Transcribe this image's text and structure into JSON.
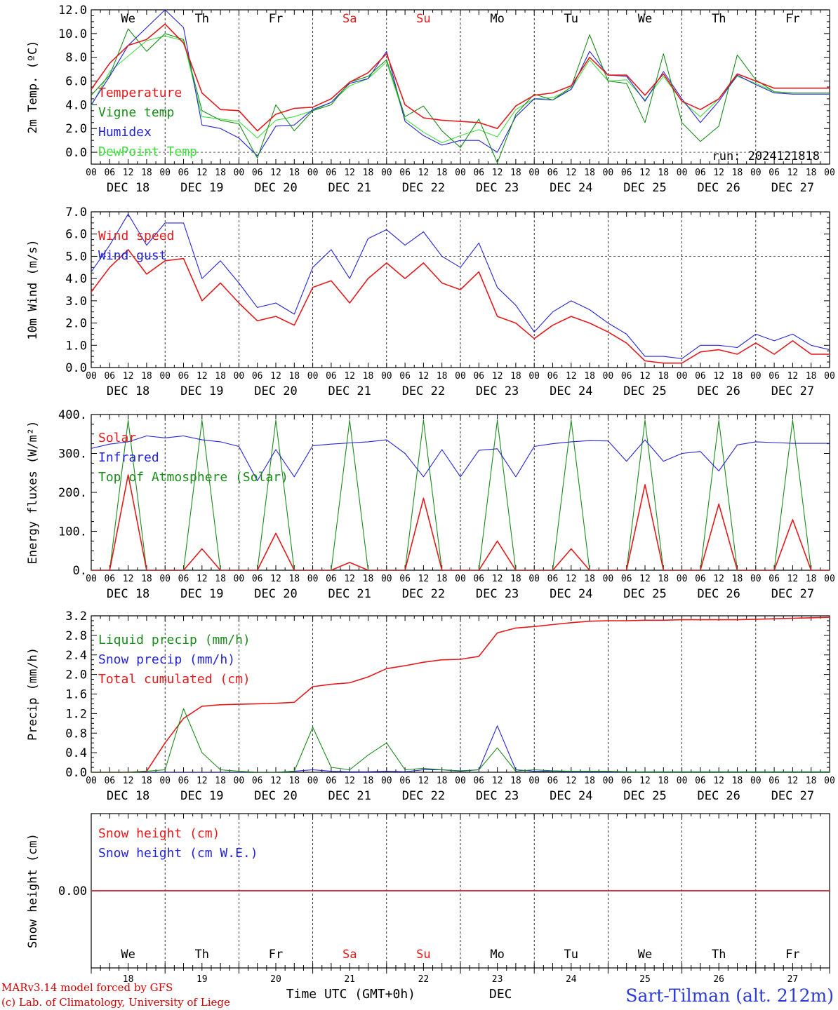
{
  "footer": {
    "model": "MARv3.14 model forced by GFS",
    "credit": "(c) Lab. of Climatology, University of Liege",
    "time_axis": "Time UTC (GMT+0h)",
    "month": "DEC",
    "station": "Sart-Tilman (alt. 212m)"
  },
  "days": {
    "names": [
      "We",
      "Th",
      "Fr",
      "Sa",
      "Su",
      "Mo",
      "Tu",
      "We",
      "Th",
      "Fr"
    ],
    "weekend": [
      false,
      false,
      false,
      true,
      true,
      false,
      false,
      false,
      false,
      false
    ],
    "dates": [
      "DEC 18",
      "DEC 19",
      "DEC 20",
      "DEC 21",
      "DEC 22",
      "DEC 23",
      "DEC 24",
      "DEC 25",
      "DEC 26",
      "DEC 27"
    ],
    "numbers": [
      "18",
      "19",
      "20",
      "21",
      "22",
      "23",
      "24",
      "25",
      "26",
      "27"
    ],
    "hour_labels": [
      "00",
      "06",
      "12",
      "18"
    ],
    "final_hour_label": "00"
  },
  "colors": {
    "red": "#e31a1c",
    "green": "#1a8c1a",
    "blue": "#2424d4",
    "lightgreen": "#3ee03e",
    "weekend": "#e31a1c",
    "station": "#2a3bd8"
  },
  "chart_data": [
    {
      "type": "line",
      "ylabel": "2m Temp. (ºC)",
      "ylim": [
        -1.0,
        12.0
      ],
      "yticks": [
        "12.0",
        "10.0",
        "8.0",
        "6.0",
        "4.0",
        "2.0",
        "0.0"
      ],
      "ytick_values": [
        12,
        10,
        8,
        6,
        4,
        2,
        0
      ],
      "ref_line": 0,
      "run_label": "run: 2024121818",
      "x_hours": [
        0,
        6,
        12,
        18,
        24,
        30,
        36,
        42,
        48,
        54,
        60,
        66,
        72,
        78,
        84,
        90,
        96,
        102,
        108,
        114,
        120,
        126,
        132,
        138,
        144,
        150,
        156,
        162,
        168,
        174,
        180,
        186,
        192,
        198,
        204,
        210,
        216,
        222,
        228,
        234,
        240
      ],
      "series": [
        {
          "name": "Temperature",
          "color": "red",
          "values": [
            5.3,
            7.5,
            9.0,
            9.5,
            10.8,
            9.2,
            5.0,
            3.6,
            3.5,
            1.8,
            3.2,
            3.7,
            3.8,
            4.5,
            5.9,
            6.7,
            8.3,
            4.0,
            2.9,
            2.7,
            2.6,
            2.5,
            2.0,
            3.9,
            4.8,
            5.0,
            5.6,
            8.0,
            6.5,
            6.5,
            4.8,
            6.6,
            4.3,
            3.6,
            4.5,
            6.6,
            6.0,
            5.4,
            5.4,
            5.4,
            5.4
          ]
        },
        {
          "name": "Vigne temp",
          "color": "green",
          "values": [
            4.8,
            6.5,
            10.4,
            8.5,
            10.0,
            9.5,
            3.5,
            2.7,
            2.4,
            -0.5,
            4.0,
            1.8,
            3.5,
            4.0,
            5.9,
            6.4,
            7.8,
            3.0,
            3.9,
            1.8,
            0.4,
            2.8,
            -0.9,
            3.2,
            4.9,
            4.4,
            5.5,
            9.9,
            6.0,
            5.8,
            2.5,
            8.3,
            2.5,
            0.9,
            2.2,
            8.2,
            6.1,
            5.1,
            5.0,
            5.0,
            5.0
          ]
        },
        {
          "name": "Humidex",
          "color": "blue",
          "values": [
            4.0,
            6.4,
            9.0,
            10.5,
            12.0,
            10.5,
            2.3,
            2.0,
            1.2,
            -0.3,
            2.2,
            2.3,
            3.6,
            4.2,
            5.8,
            6.2,
            8.5,
            2.6,
            1.4,
            0.6,
            1.0,
            1.0,
            0.0,
            3.0,
            4.5,
            4.4,
            5.3,
            8.5,
            6.5,
            6.4,
            4.3,
            6.8,
            4.5,
            2.5,
            4.3,
            6.5,
            5.7,
            5.0,
            4.9,
            4.9,
            4.9
          ]
        },
        {
          "name": "DewPoint Temp",
          "color": "lightgreen",
          "values": [
            3.9,
            6.8,
            8.1,
            9.4,
            9.8,
            9.4,
            3.0,
            2.8,
            2.6,
            1.2,
            2.7,
            3.0,
            3.5,
            4.2,
            5.6,
            6.2,
            7.6,
            2.8,
            1.7,
            0.8,
            1.4,
            1.9,
            1.3,
            3.6,
            4.5,
            4.6,
            5.3,
            7.8,
            6.0,
            6.1,
            4.4,
            6.4,
            4.3,
            3.0,
            4.5,
            6.4,
            5.8,
            5.1,
            5.0,
            5.0,
            5.0
          ]
        }
      ]
    },
    {
      "type": "line",
      "ylabel": "10m Wind (m/s)",
      "ylim": [
        0.0,
        7.0
      ],
      "yticks": [
        "7.0",
        "6.0",
        "5.0",
        "4.0",
        "3.0",
        "2.0",
        "1.0",
        "0.0"
      ],
      "ytick_values": [
        7,
        6,
        5,
        4,
        3,
        2,
        1,
        0
      ],
      "ref_line": 5,
      "x_hours": [
        0,
        6,
        12,
        18,
        24,
        30,
        36,
        42,
        48,
        54,
        60,
        66,
        72,
        78,
        84,
        90,
        96,
        102,
        108,
        114,
        120,
        126,
        132,
        138,
        144,
        150,
        156,
        162,
        168,
        174,
        180,
        186,
        192,
        198,
        204,
        210,
        216,
        222,
        228,
        234,
        240
      ],
      "series": [
        {
          "name": "Wind speed",
          "color": "red",
          "values": [
            3.4,
            4.5,
            5.3,
            4.2,
            4.8,
            4.9,
            3.0,
            3.8,
            2.9,
            2.1,
            2.3,
            1.9,
            3.6,
            3.9,
            2.9,
            4.0,
            4.7,
            4.0,
            4.7,
            3.8,
            3.5,
            4.3,
            2.3,
            2.0,
            1.3,
            1.9,
            2.3,
            2.0,
            1.6,
            1.1,
            0.3,
            0.2,
            0.2,
            0.7,
            0.8,
            0.6,
            1.1,
            0.6,
            1.2,
            0.6,
            0.6
          ]
        },
        {
          "name": "Wind gust",
          "color": "blue",
          "values": [
            4.3,
            5.5,
            6.9,
            5.5,
            6.5,
            6.5,
            4.0,
            4.8,
            3.8,
            2.7,
            2.9,
            2.4,
            4.5,
            5.3,
            4.0,
            5.8,
            6.2,
            5.5,
            6.1,
            5.0,
            4.5,
            5.6,
            3.6,
            2.8,
            1.6,
            2.5,
            3.0,
            2.6,
            2.0,
            1.5,
            0.5,
            0.5,
            0.4,
            1.0,
            1.0,
            0.9,
            1.5,
            1.2,
            1.5,
            1.0,
            0.8
          ]
        }
      ]
    },
    {
      "type": "line",
      "ylabel": "Energy fluxes (W/m²)",
      "ylim": [
        0,
        400
      ],
      "yticks": [
        "400.",
        "300.",
        "200.",
        "100.",
        "0."
      ],
      "ytick_values": [
        400,
        300,
        200,
        100,
        0
      ],
      "x_hours": [
        0,
        6,
        12,
        18,
        24,
        30,
        36,
        42,
        48,
        54,
        60,
        66,
        72,
        78,
        84,
        90,
        96,
        102,
        108,
        114,
        120,
        126,
        132,
        138,
        144,
        150,
        156,
        162,
        168,
        174,
        180,
        186,
        192,
        198,
        204,
        210,
        216,
        222,
        228,
        234,
        240
      ],
      "series": [
        {
          "name": "Solar",
          "color": "red",
          "values": [
            0,
            0,
            245,
            0,
            0,
            0,
            55,
            0,
            0,
            0,
            95,
            0,
            0,
            0,
            20,
            0,
            0,
            0,
            185,
            0,
            0,
            0,
            75,
            0,
            0,
            0,
            55,
            0,
            0,
            0,
            220,
            0,
            0,
            0,
            170,
            0,
            0,
            0,
            130,
            0,
            0
          ]
        },
        {
          "name": "Infrared",
          "color": "blue",
          "values": [
            313,
            324,
            330,
            345,
            340,
            345,
            335,
            330,
            318,
            230,
            310,
            240,
            320,
            324,
            327,
            330,
            335,
            300,
            240,
            310,
            240,
            308,
            312,
            240,
            318,
            325,
            330,
            333,
            332,
            280,
            335,
            280,
            300,
            305,
            255,
            322,
            330,
            328,
            326,
            326,
            326
          ]
        },
        {
          "name": "Top of Atmosphere (Solar)",
          "color": "green",
          "values": [
            0,
            0,
            385,
            0,
            0,
            0,
            385,
            0,
            0,
            0,
            385,
            0,
            0,
            0,
            385,
            0,
            0,
            0,
            385,
            0,
            0,
            0,
            385,
            0,
            0,
            0,
            385,
            0,
            0,
            0,
            385,
            0,
            0,
            0,
            385,
            0,
            0,
            0,
            385,
            0,
            0
          ]
        }
      ]
    },
    {
      "type": "line",
      "ylabel": "Precip (mm/h)",
      "ylim": [
        0.0,
        3.2
      ],
      "yticks": [
        "3.2",
        "2.8",
        "2.4",
        "2.0",
        "1.6",
        "1.2",
        "0.8",
        "0.4",
        "0.0"
      ],
      "ytick_values": [
        3.2,
        2.8,
        2.4,
        2.0,
        1.6,
        1.2,
        0.8,
        0.4,
        0.0
      ],
      "x_hours": [
        0,
        6,
        12,
        18,
        24,
        30,
        36,
        42,
        48,
        54,
        60,
        66,
        72,
        78,
        84,
        90,
        96,
        102,
        108,
        114,
        120,
        126,
        132,
        138,
        144,
        150,
        156,
        162,
        168,
        174,
        180,
        186,
        192,
        198,
        204,
        210,
        216,
        222,
        228,
        234,
        240
      ],
      "series": [
        {
          "name": "Liquid precip (mm/h)",
          "color": "green",
          "values": [
            0,
            0,
            0,
            0.02,
            0.05,
            1.3,
            0.4,
            0.05,
            0.02,
            0,
            0,
            0.02,
            0.92,
            0.1,
            0.05,
            0.35,
            0.6,
            0.05,
            0.08,
            0.05,
            0.03,
            0.05,
            0.5,
            0.02,
            0.05,
            0.03,
            0.02,
            0.02,
            0.02,
            0.01,
            0.01,
            0.01,
            0.01,
            0.01,
            0.01,
            0.01,
            0.01,
            0.01,
            0.01,
            0.01,
            0.01
          ]
        },
        {
          "name": "Snow precip (mm/h)",
          "color": "blue",
          "values": [
            0,
            0,
            0,
            0,
            0,
            0,
            0,
            0,
            0,
            0,
            0,
            0.02,
            0.05,
            0.02,
            0.01,
            0.01,
            0.02,
            0.01,
            0.05,
            0.05,
            0.02,
            0.05,
            0.95,
            0.05,
            0.02,
            0.02,
            0.01,
            0.01,
            0.01,
            0.01,
            0,
            0,
            0,
            0,
            0,
            0,
            0,
            0,
            0,
            0,
            0
          ]
        },
        {
          "name": "Total cumulated (cm)",
          "color": "red",
          "values": [
            0,
            0,
            0,
            0.02,
            0.6,
            1.1,
            1.35,
            1.38,
            1.39,
            1.4,
            1.41,
            1.43,
            1.75,
            1.8,
            1.83,
            1.95,
            2.12,
            2.18,
            2.25,
            2.3,
            2.31,
            2.37,
            2.85,
            2.95,
            2.98,
            3.02,
            3.06,
            3.09,
            3.1,
            3.1,
            3.11,
            3.11,
            3.12,
            3.12,
            3.12,
            3.12,
            3.13,
            3.14,
            3.15,
            3.16,
            3.17
          ]
        }
      ]
    },
    {
      "type": "line",
      "ylabel": "Snow height (cm)",
      "ytick_label": "0.00",
      "series": [
        {
          "name": "Snow height (cm)",
          "color": "red",
          "values": [
            0.0,
            0.0
          ]
        },
        {
          "name": "Snow height (cm W.E.)",
          "color": "blue",
          "values": [
            0.0,
            0.0
          ]
        }
      ]
    }
  ]
}
